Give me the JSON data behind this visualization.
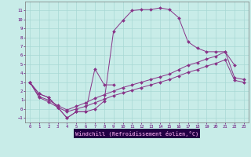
{
  "xlabel": "Windchill (Refroidissement éolien,°C)",
  "bg_color": "#c8ece8",
  "grid_color": "#a8d8d4",
  "line_color": "#883388",
  "axis_label_bg": "#330066",
  "xlim": [
    -0.5,
    23.5
  ],
  "ylim": [
    -1.5,
    12.0
  ],
  "xticks": [
    0,
    1,
    2,
    3,
    4,
    5,
    6,
    7,
    8,
    9,
    10,
    11,
    12,
    13,
    14,
    15,
    16,
    17,
    18,
    19,
    20,
    21,
    22,
    23
  ],
  "yticks": [
    -1,
    0,
    1,
    2,
    3,
    4,
    5,
    6,
    7,
    8,
    9,
    10,
    11
  ],
  "curve1_x": [
    0,
    1,
    2,
    3,
    4,
    5,
    6,
    7,
    8,
    9,
    10,
    11,
    12,
    13,
    14,
    15,
    16,
    17,
    18,
    19,
    20,
    21,
    22
  ],
  "curve1_y": [
    3.0,
    1.7,
    1.3,
    0.2,
    -1.0,
    -0.3,
    -0.3,
    0.0,
    0.9,
    8.7,
    9.9,
    11.0,
    11.1,
    11.1,
    11.3,
    11.1,
    10.2,
    7.5,
    6.8,
    6.4,
    6.4,
    6.4,
    4.9
  ],
  "curve2_x": [
    0,
    1,
    2,
    3,
    4,
    5,
    6,
    7,
    8,
    9
  ],
  "curve2_y": [
    3.0,
    1.7,
    1.3,
    0.2,
    -1.0,
    -0.3,
    -0.3,
    4.5,
    2.7,
    2.7
  ],
  "curve3_x": [
    0,
    1,
    2,
    3,
    4,
    5,
    6,
    7,
    8,
    9,
    10,
    11,
    12,
    13,
    14,
    15,
    16,
    17,
    18,
    19,
    20,
    21,
    22,
    23
  ],
  "curve3_y": [
    3.0,
    1.4,
    1.0,
    0.4,
    -0.1,
    0.3,
    0.7,
    1.2,
    1.6,
    2.0,
    2.4,
    2.7,
    3.0,
    3.3,
    3.6,
    3.9,
    4.4,
    4.9,
    5.2,
    5.6,
    5.9,
    6.4,
    3.5,
    3.3
  ],
  "curve4_x": [
    0,
    1,
    2,
    3,
    4,
    5,
    6,
    7,
    8,
    9,
    10,
    11,
    12,
    13,
    14,
    15,
    16,
    17,
    18,
    19,
    20,
    21,
    22,
    23
  ],
  "curve4_y": [
    3.0,
    1.3,
    0.8,
    0.2,
    -0.3,
    0.0,
    0.3,
    0.7,
    1.1,
    1.5,
    1.8,
    2.1,
    2.4,
    2.7,
    3.0,
    3.3,
    3.7,
    4.1,
    4.4,
    4.8,
    5.1,
    5.5,
    3.2,
    3.0
  ]
}
